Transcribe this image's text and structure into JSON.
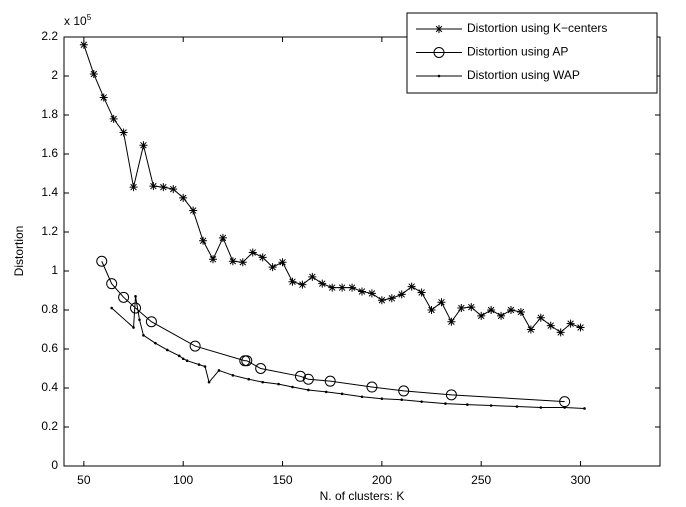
{
  "chart_data": {
    "type": "line",
    "x_label": "N. of clusters: K",
    "y_label": "Distortion",
    "y_multiplier": {
      "base": "x 10",
      "exponent": "5"
    },
    "xlim": [
      40,
      340
    ],
    "xticks": [
      50,
      100,
      150,
      200,
      250,
      300
    ],
    "ylim": [
      0,
      2.2
    ],
    "yticks": [
      0,
      0.2,
      0.4,
      0.6,
      0.8,
      1,
      1.2,
      1.4,
      1.6,
      1.8,
      2,
      2.2
    ],
    "legend": "northeast",
    "series": [
      {
        "name": "Distortion using K−centers",
        "color": "#000000",
        "marker": "star",
        "x": [
          50,
          55,
          60,
          65,
          70,
          75,
          80,
          85,
          90,
          95,
          100,
          105,
          110,
          115,
          120,
          125,
          130,
          135,
          140,
          145,
          150,
          155,
          160,
          165,
          170,
          175,
          180,
          185,
          190,
          195,
          200,
          205,
          210,
          215,
          220,
          225,
          230,
          235,
          240,
          245,
          250,
          255,
          260,
          265,
          270,
          275,
          280,
          285,
          290,
          295,
          300
        ],
        "values": [
          2.16,
          2.01,
          1.89,
          1.78,
          1.71,
          1.43,
          1.645,
          1.435,
          1.43,
          1.42,
          1.375,
          1.31,
          1.155,
          1.06,
          1.17,
          1.05,
          1.045,
          1.095,
          1.07,
          1.02,
          1.045,
          0.945,
          0.93,
          0.97,
          0.935,
          0.915,
          0.915,
          0.915,
          0.895,
          0.885,
          0.85,
          0.86,
          0.88,
          0.92,
          0.89,
          0.8,
          0.84,
          0.74,
          0.81,
          0.815,
          0.77,
          0.8,
          0.77,
          0.8,
          0.79,
          0.7,
          0.76,
          0.72,
          0.685,
          0.73,
          0.71
        ]
      },
      {
        "name": "Distortion using AP",
        "color": "#000000",
        "marker": "circle",
        "x": [
          59,
          64,
          70,
          76,
          84,
          106,
          131,
          132,
          139,
          159,
          163,
          174,
          195,
          211,
          235,
          292
        ],
        "values": [
          1.05,
          0.935,
          0.865,
          0.81,
          0.74,
          0.615,
          0.54,
          0.54,
          0.5,
          0.46,
          0.445,
          0.435,
          0.405,
          0.385,
          0.365,
          0.33
        ]
      },
      {
        "name": "Distortion using WAP",
        "color": "#000000",
        "marker": "dot",
        "x": [
          64,
          75,
          76,
          78,
          80,
          86,
          92,
          98,
          100,
          102,
          108,
          111,
          113,
          118,
          125,
          133,
          140,
          148,
          155,
          163,
          172,
          180,
          190,
          200,
          210,
          220,
          232,
          243,
          255,
          268,
          280,
          292,
          302
        ],
        "values": [
          0.81,
          0.71,
          0.87,
          0.75,
          0.67,
          0.63,
          0.595,
          0.565,
          0.55,
          0.54,
          0.52,
          0.51,
          0.43,
          0.49,
          0.465,
          0.445,
          0.43,
          0.42,
          0.405,
          0.39,
          0.38,
          0.37,
          0.355,
          0.345,
          0.34,
          0.33,
          0.32,
          0.315,
          0.31,
          0.305,
          0.3,
          0.3,
          0.295
        ]
      }
    ]
  }
}
